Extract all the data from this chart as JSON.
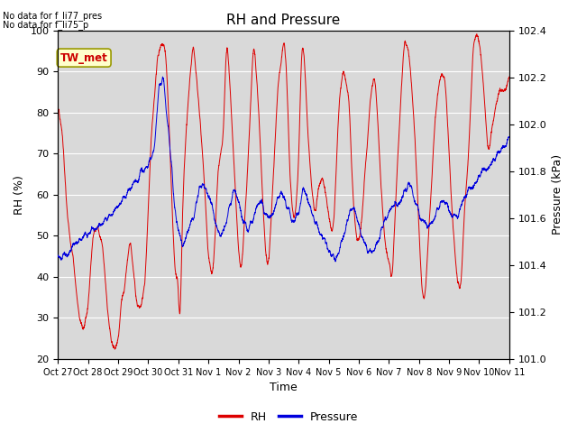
{
  "title": "RH and Pressure",
  "xlabel": "Time",
  "ylabel_left": "RH (%)",
  "ylabel_right": "Pressure (kPa)",
  "annotation_line1": "No data for f_li77_pres",
  "annotation_line2": "No data for f_li75_p",
  "box_label": "TW_met",
  "box_facecolor": "#ffffcc",
  "box_edgecolor": "#999900",
  "box_textcolor": "#cc0000",
  "rh_color": "#dd0000",
  "pressure_color": "#0000dd",
  "background_color": "#d9d9d9",
  "ylim_left": [
    20,
    100
  ],
  "ylim_right": [
    101.0,
    102.4
  ],
  "yticks_left": [
    20,
    30,
    40,
    50,
    60,
    70,
    80,
    90,
    100
  ],
  "yticks_right": [
    101.0,
    101.2,
    101.4,
    101.6,
    101.8,
    102.0,
    102.2,
    102.4
  ],
  "xtick_labels": [
    "Oct 27",
    "Oct 28",
    "Oct 29",
    "Oct 30",
    "Oct 31",
    "Nov 1",
    "Nov 2",
    "Nov 3",
    "Nov 4",
    "Nov 5",
    "Nov 6",
    "Nov 7",
    "Nov 8",
    "Nov 9",
    "Nov 10",
    "Nov 11"
  ],
  "legend_rh": "RH",
  "legend_pressure": "Pressure"
}
